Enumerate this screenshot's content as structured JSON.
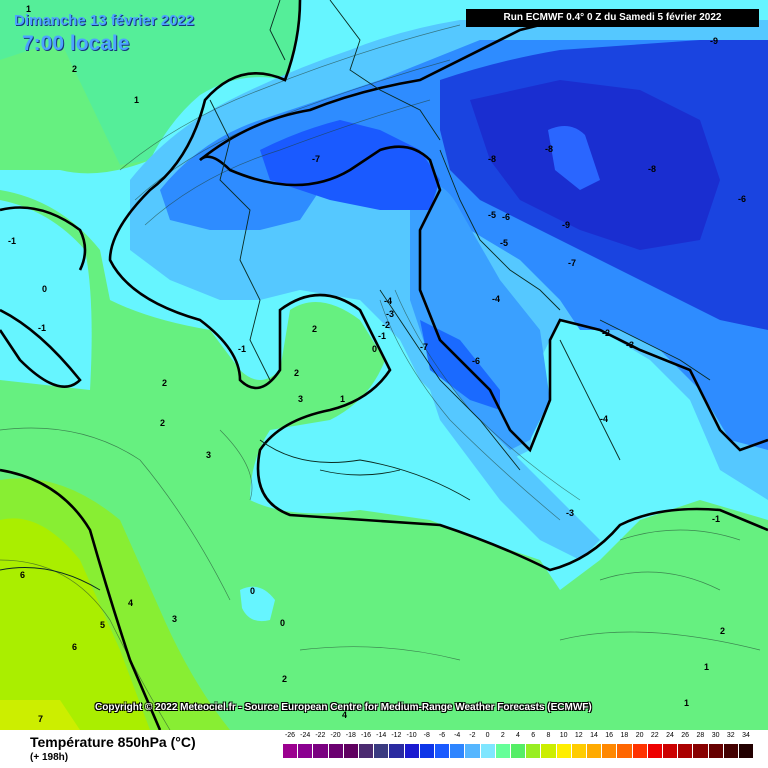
{
  "header": {
    "date": "Dimanche 13 février 2022",
    "time": "7:00 locale",
    "run": "Run ECMWF 0.4° 0 Z du Samedi 5 février 2022"
  },
  "copyright": "Copyright © 2022 Meteociel.fr - Source European Centre for Medium-Range Weather Forecasts (ECMWF)",
  "footer": {
    "variable": "Température 850hPa (°C)",
    "lead": "(+ 198h)"
  },
  "scale": {
    "ticks": [
      "-26",
      "-24",
      "-22",
      "-20",
      "-18",
      "-16",
      "-14",
      "-12",
      "-10",
      "-8",
      "-6",
      "-4",
      "-2",
      "0",
      "2",
      "4",
      "6",
      "8",
      "10",
      "12",
      "14",
      "16",
      "18",
      "20",
      "22",
      "24",
      "26",
      "28",
      "30",
      "32",
      "34"
    ],
    "colors": [
      "#9b008f",
      "#8a0090",
      "#7a0080",
      "#6b0070",
      "#600060",
      "#4b2a70",
      "#3a3a80",
      "#2a2aa0",
      "#1a1ad0",
      "#0d35e8",
      "#1a5aff",
      "#2e85ff",
      "#55b6ff",
      "#7fe6ff",
      "#66ff99",
      "#55ee66",
      "#99ee22",
      "#ccee00",
      "#ffee00",
      "#ffcc00",
      "#ffaa00",
      "#ff8800",
      "#ff6600",
      "#ff3300",
      "#ee0000",
      "#cc0000",
      "#aa0000",
      "#880000",
      "#660000",
      "#440000",
      "#220000"
    ]
  },
  "map_labels": [
    {
      "text": "2"
    },
    {
      "text": "1"
    },
    {
      "text": "-1"
    },
    {
      "text": "0"
    },
    {
      "text": "-1"
    },
    {
      "text": "-1"
    },
    {
      "text": "2"
    },
    {
      "text": "2"
    },
    {
      "text": "3"
    },
    {
      "text": "1"
    },
    {
      "text": "2"
    },
    {
      "text": "3"
    },
    {
      "text": "2"
    },
    {
      "text": "-7"
    },
    {
      "text": "-8"
    },
    {
      "text": "-8"
    },
    {
      "text": "-8"
    },
    {
      "text": "-9"
    },
    {
      "text": "-9"
    },
    {
      "text": "-6"
    },
    {
      "text": "-5"
    },
    {
      "text": "-6"
    },
    {
      "text": "-5"
    },
    {
      "text": "-7"
    },
    {
      "text": "-4"
    },
    {
      "text": "-4"
    },
    {
      "text": "-3"
    },
    {
      "text": "-2"
    },
    {
      "text": "-1"
    },
    {
      "text": "0"
    },
    {
      "text": "-7"
    },
    {
      "text": "-6"
    },
    {
      "text": "-2"
    },
    {
      "text": "-3"
    },
    {
      "text": "-4"
    },
    {
      "text": "-3"
    },
    {
      "text": "-1"
    },
    {
      "text": "0"
    },
    {
      "text": "0"
    },
    {
      "text": "6"
    },
    {
      "text": "4"
    },
    {
      "text": "5"
    },
    {
      "text": "3"
    },
    {
      "text": "6"
    },
    {
      "text": "2"
    },
    {
      "text": "4"
    },
    {
      "text": "7"
    },
    {
      "text": "1"
    },
    {
      "text": "2"
    },
    {
      "text": "1"
    },
    {
      "text": "1"
    }
  ],
  "colors": {
    "warm_green": "#66ff80",
    "cold_cyan": "#66f5ff",
    "cold_blue": "#2a7cff",
    "deep_blue": "#1a3ad8",
    "yellow_green": "#99ee22"
  }
}
